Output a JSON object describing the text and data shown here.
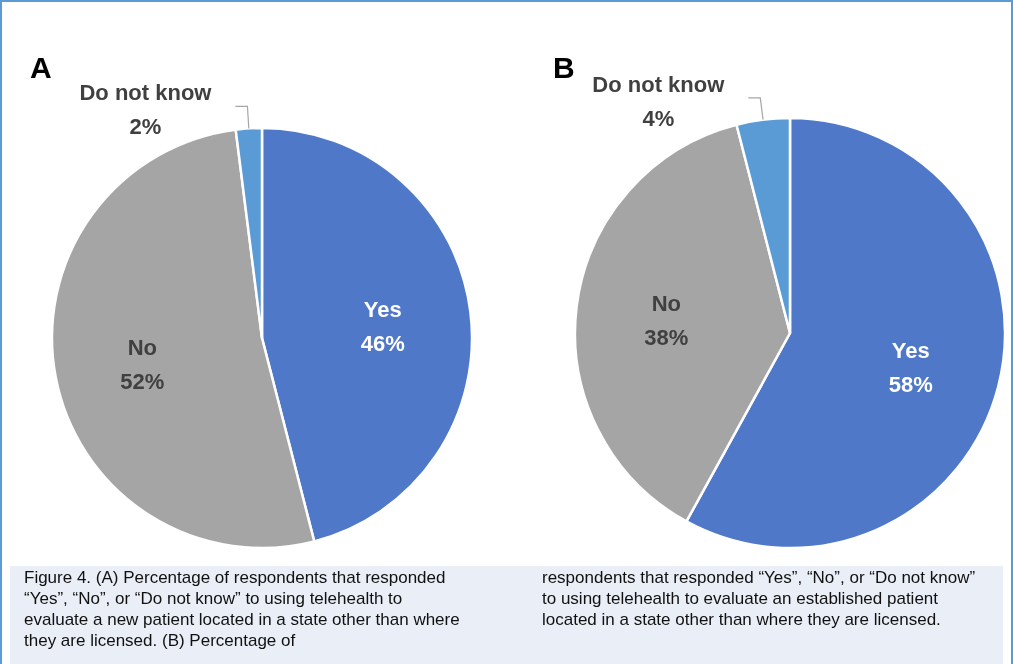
{
  "chart_data": [
    {
      "type": "pie",
      "title": "A",
      "categories": [
        "Yes",
        "No",
        "Do not know"
      ],
      "values": [
        46,
        52,
        2
      ],
      "colors": [
        "#4f78c9",
        "#a5a5a5",
        "#5b9bd5"
      ],
      "value_labels": [
        "46%",
        "52%",
        "2%"
      ],
      "annotations": [
        "Figure 4. (A) Percentage of respondents that responded “Yes”, “No”, or “Do not know” to using telehealth to evaluate a new patient located in a state other than where they are licensed. (B) Percentage of"
      ]
    },
    {
      "type": "pie",
      "title": "B",
      "categories": [
        "Yes",
        "No",
        "Do not know"
      ],
      "values": [
        58,
        38,
        4
      ],
      "colors": [
        "#4f78c9",
        "#a5a5a5",
        "#5b9bd5"
      ],
      "value_labels": [
        "58%",
        "38%",
        "4%"
      ],
      "annotations": [
        "respondents that responded “Yes”, “No”, or “Do not know” to using telehealth to evaluate an established patient located in a state other than where they are licensed."
      ]
    }
  ]
}
